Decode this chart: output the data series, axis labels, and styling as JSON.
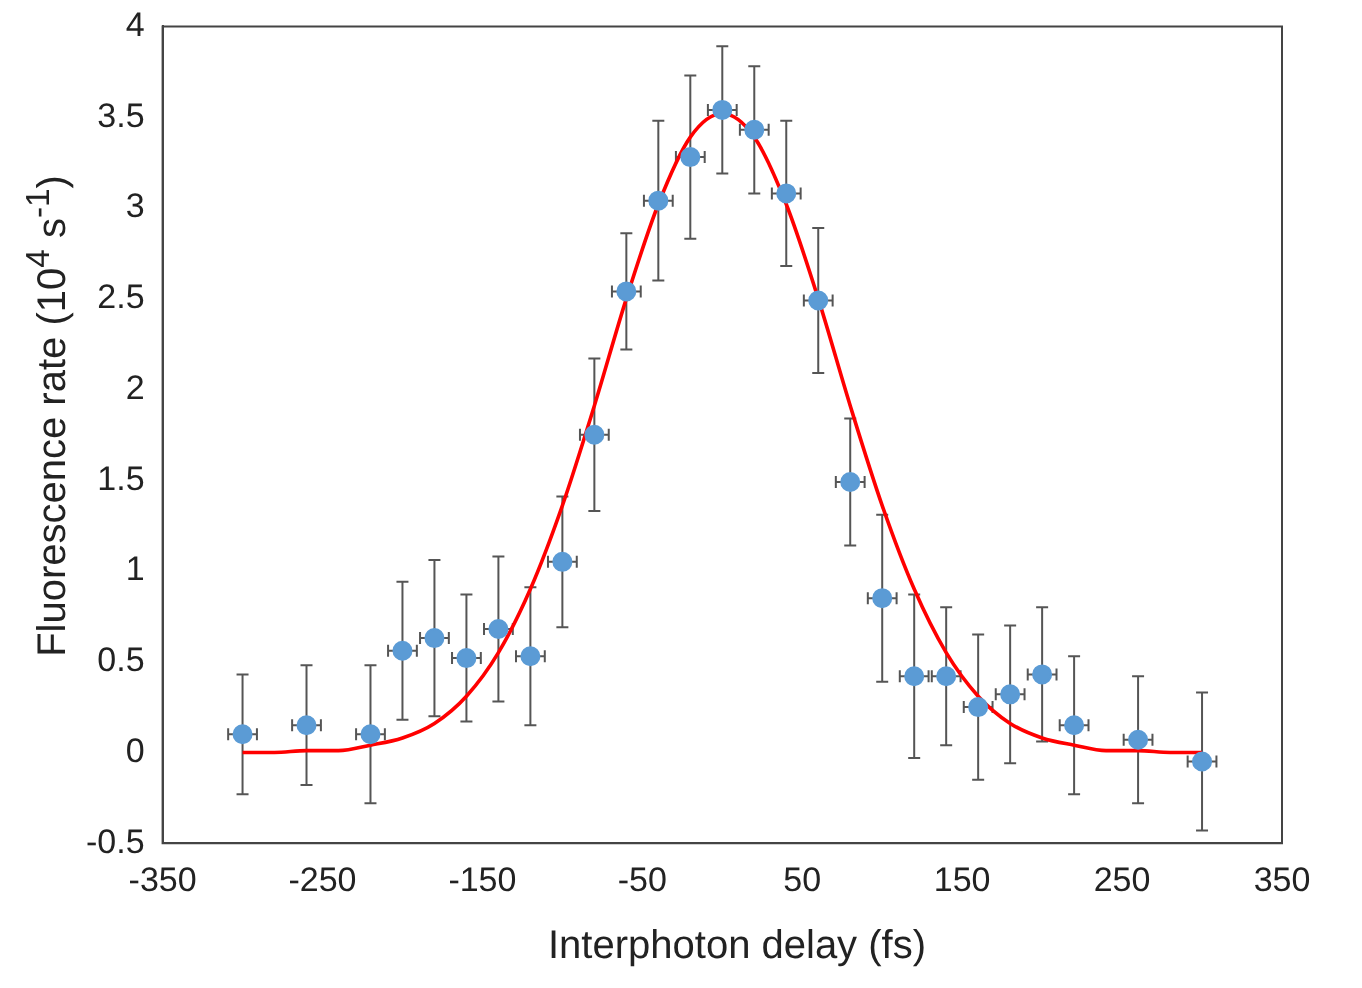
{
  "chart_data": {
    "type": "scatter",
    "xlabel": "Interphoton delay (fs)",
    "ylabel": "Fluorescence rate  (10$^{4}$ s$^{-1}$)",
    "xlim": [
      -350,
      350
    ],
    "xticks": [
      -350,
      -250,
      -150,
      -50,
      50,
      150,
      250,
      350
    ],
    "ylim": [
      -0.5,
      4
    ],
    "yticks": [
      -0.5,
      0,
      0.5,
      1,
      1.5,
      2,
      2.5,
      3,
      3.5,
      4
    ],
    "grid": false,
    "legend": false,
    "marker": "circle",
    "series": [
      {
        "type": "scatter",
        "color": "#5b9bd5",
        "x": [
          -300,
          -260,
          -220,
          -200,
          -180,
          -160,
          -140,
          -120,
          -100,
          -80,
          -60,
          -40,
          -20,
          0,
          20,
          40,
          60,
          80,
          100,
          120,
          140,
          160,
          180,
          200,
          220,
          260,
          300
        ],
        "values": [
          0.1,
          0.15,
          0.1,
          0.56,
          0.63,
          0.52,
          0.68,
          0.53,
          1.05,
          1.75,
          2.54,
          3.04,
          3.28,
          3.54,
          3.43,
          3.08,
          2.49,
          1.49,
          0.85,
          0.42,
          0.42,
          0.25,
          0.32,
          0.43,
          0.15,
          0.07,
          -0.05
        ],
        "errors": [
          0.33,
          0.33,
          0.38,
          0.38,
          0.43,
          0.35,
          0.4,
          0.38,
          0.36,
          0.42,
          0.32,
          0.44,
          0.45,
          0.35,
          0.35,
          0.4,
          0.4,
          0.35,
          0.46,
          0.45,
          0.38,
          0.4,
          0.38,
          0.37,
          0.38,
          0.35,
          0.38
        ],
        "xerrors": [
          9,
          9,
          9,
          9,
          9,
          9,
          9,
          9,
          9,
          9,
          9,
          9,
          9,
          9,
          9,
          9,
          9,
          9,
          9,
          9,
          9,
          9,
          9,
          9,
          9,
          9,
          9
        ]
      },
      {
        "type": "line",
        "color": "#ff0000",
        "marker": "none",
        "x": [
          -300,
          -280,
          -260,
          -240,
          -220,
          -200,
          -180,
          -160,
          -140,
          -120,
          -100,
          -80,
          -60,
          -40,
          -20,
          0,
          20,
          40,
          60,
          80,
          100,
          120,
          140,
          160,
          180,
          200,
          220,
          240,
          260,
          280,
          300
        ],
        "values": [
          0,
          0,
          0.01,
          0.01,
          0.04,
          0.08,
          0.16,
          0.31,
          0.55,
          0.9,
          1.36,
          1.91,
          2.5,
          3.02,
          3.39,
          3.52,
          3.39,
          3.02,
          2.5,
          1.91,
          1.36,
          0.9,
          0.55,
          0.31,
          0.16,
          0.08,
          0.04,
          0.01,
          0.01,
          0,
          0
        ]
      }
    ]
  }
}
